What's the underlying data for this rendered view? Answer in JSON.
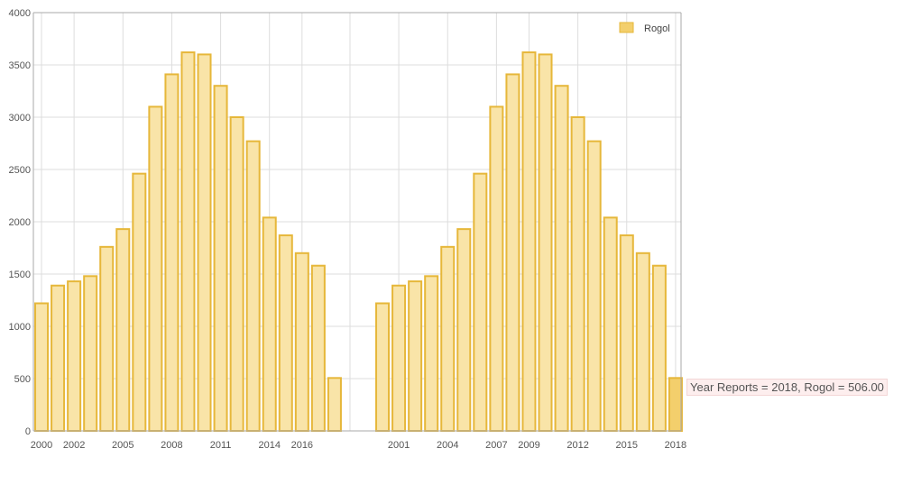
{
  "chart_data": {
    "type": "bar",
    "legend": {
      "label": "Rogol",
      "position": "top-right"
    },
    "grid": true,
    "ylim": [
      0,
      4000
    ],
    "y_ticks": [
      0,
      500,
      1000,
      1500,
      2000,
      2500,
      3000,
      3500,
      4000
    ],
    "colors": {
      "bar_fill": "#f9e4a8",
      "bar_stroke": "#e6b73a",
      "highlight_fill": "#f3cf6c",
      "grid": "#dddddd",
      "axis": "#aaaaaa"
    },
    "groups": [
      {
        "x": [
          2000,
          2001,
          2002,
          2003,
          2004,
          2005,
          2006,
          2007,
          2008,
          2009,
          2010,
          2011,
          2012,
          2013,
          2014,
          2015,
          2016,
          2017,
          2018
        ],
        "x_tick_labels": [
          "2000",
          "2002",
          "2005",
          "2008",
          "2011",
          "2014",
          "2016"
        ],
        "values": [
          1220,
          1390,
          1430,
          1480,
          1760,
          1930,
          2460,
          3100,
          3410,
          3620,
          3600,
          3300,
          3000,
          2770,
          2040,
          1870,
          1700,
          1580,
          506
        ]
      },
      {
        "x": [
          2000,
          2001,
          2002,
          2003,
          2004,
          2005,
          2006,
          2007,
          2008,
          2009,
          2010,
          2011,
          2012,
          2013,
          2014,
          2015,
          2016,
          2017,
          2018
        ],
        "x_tick_labels": [
          "2001",
          "2004",
          "2007",
          "2009",
          "2012",
          "2015",
          "2018"
        ],
        "values": [
          1220,
          1390,
          1430,
          1480,
          1760,
          1930,
          2460,
          3100,
          3410,
          3620,
          3600,
          3300,
          3000,
          2770,
          2040,
          1870,
          1700,
          1580,
          506
        ]
      }
    ],
    "highlighted": {
      "group": 1,
      "x": 2018
    },
    "tooltip": "Year Reports = 2018, Rogol = 506.00"
  }
}
